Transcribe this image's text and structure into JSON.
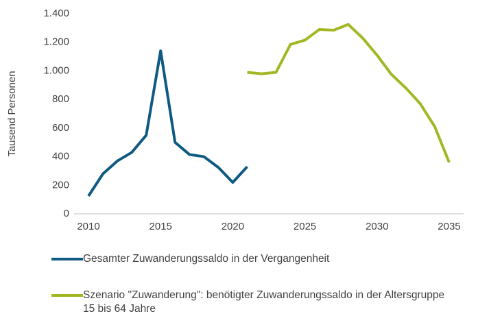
{
  "chart_data": {
    "type": "line",
    "y_axis_label": "Tausend Personen",
    "xlim": [
      2009,
      2036
    ],
    "xticks": [
      2010,
      2015,
      2020,
      2025,
      2030,
      2035
    ],
    "ylim": [
      0,
      1400
    ],
    "yticks": [
      0,
      200,
      400,
      600,
      800,
      {
        "value": 1000,
        "label": "1.000"
      },
      {
        "value": 1200,
        "label": "1.200"
      },
      {
        "value": 1400,
        "label": "1.400"
      }
    ],
    "grid": false,
    "legend": "bottom",
    "series": [
      {
        "name": "Gesamter Zuwanderungssaldo in der Vergangenheit",
        "color": "#0f5a82",
        "x": [
          2010,
          2011,
          2012,
          2013,
          2014,
          2015,
          2016,
          2017,
          2018,
          2019,
          2020,
          2021
        ],
        "values": [
          125,
          280,
          370,
          430,
          550,
          1140,
          500,
          415,
          400,
          325,
          220,
          330
        ]
      },
      {
        "name": "Szenario \"Zuwanderung\": benötigter Zuwanderungssaldo in der Altersgruppe 15 bis 64 Jahre",
        "color": "#a2b723",
        "x": [
          2021,
          2022,
          2023,
          2024,
          2025,
          2026,
          2027,
          2028,
          2029,
          2030,
          2031,
          2032,
          2033,
          2034,
          2035
        ],
        "values": [
          990,
          980,
          990,
          1185,
          1215,
          1290,
          1285,
          1325,
          1230,
          1110,
          975,
          880,
          770,
          610,
          360
        ]
      }
    ]
  }
}
